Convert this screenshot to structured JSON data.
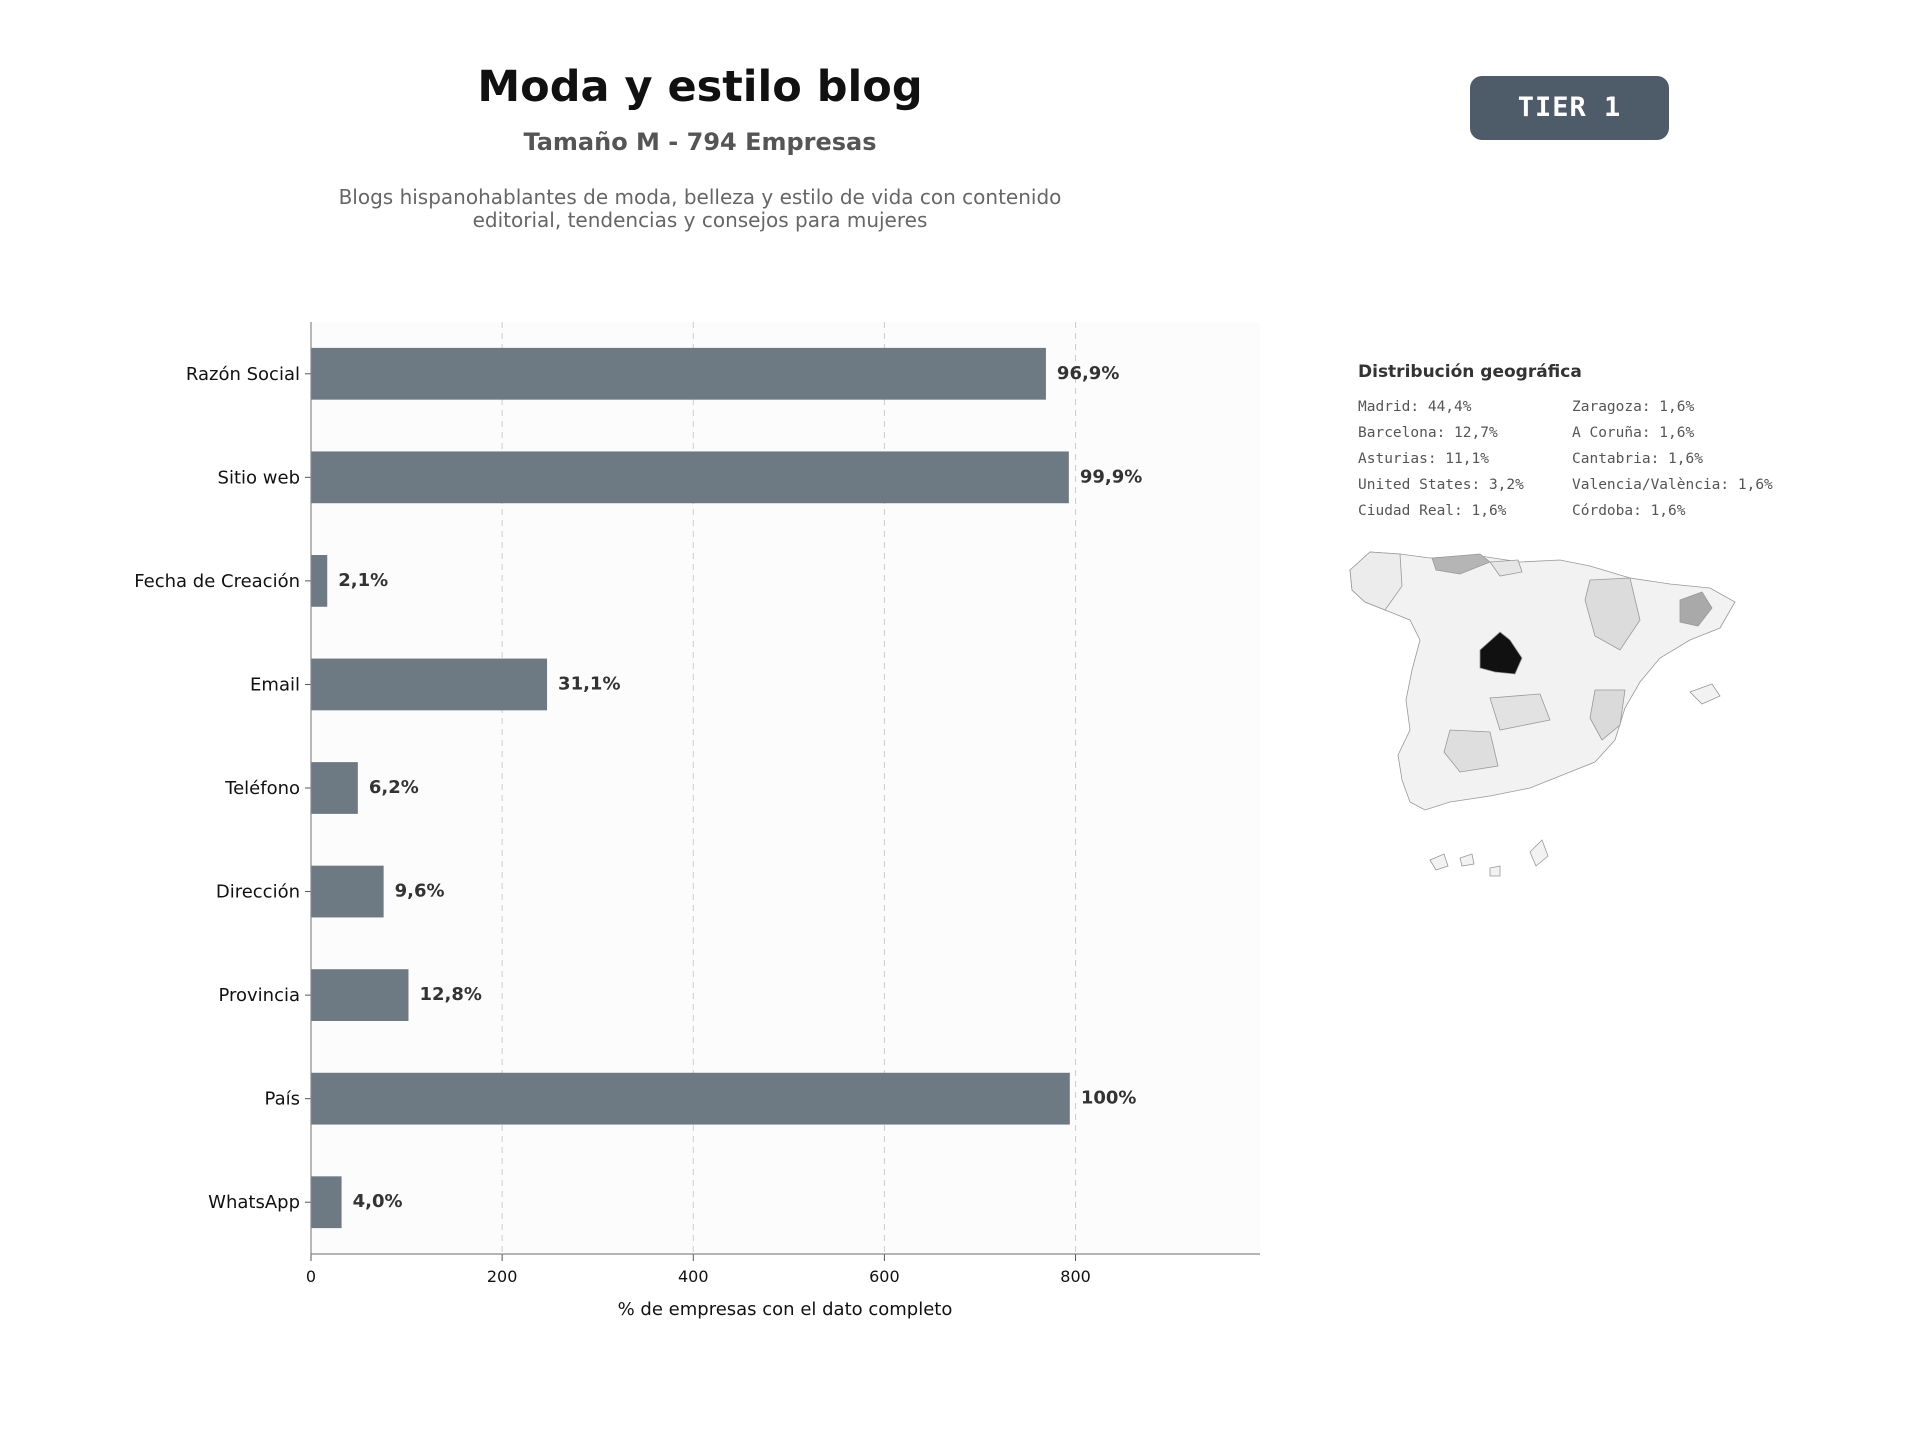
{
  "header": {
    "title": "Moda y estilo blog",
    "subtitle": "Tamaño M - 794 Empresas",
    "description_line1": "Blogs hispanohablantes de moda, belleza y estilo de vida con contenido",
    "description_line2": "editorial, tendencias y consejos para mujeres",
    "tier_badge": "TIER 1"
  },
  "colors": {
    "bar": "#6e7a83",
    "panel_bg": "#fcfcfc",
    "tier_bg": "#4e5b69",
    "map_region": "#f2f2f2",
    "map_highlight": "#111111"
  },
  "chart_data": {
    "type": "bar",
    "orientation": "horizontal",
    "categories": [
      "Razón Social",
      "Sitio web",
      "Fecha de Creación",
      "Email",
      "Teléfono",
      "Dirección",
      "Provincia",
      "País",
      "WhatsApp"
    ],
    "values": [
      769,
      793,
      17,
      247,
      49,
      76,
      102,
      794,
      32
    ],
    "value_labels": [
      "96,9%",
      "99,9%",
      "2,1%",
      "31,1%",
      "6,2%",
      "9,6%",
      "12,8%",
      "100%",
      "4,0%"
    ],
    "xlabel": "% de empresas con el dato completo",
    "ylabel": "",
    "xlim": [
      0,
      993
    ],
    "xticks": [
      0,
      200,
      400,
      600,
      800
    ],
    "xtick_labels": [
      "0",
      "200",
      "400",
      "600",
      "800"
    ],
    "grid": "vertical dashed"
  },
  "geo": {
    "title": "Distribución geográfica",
    "items": [
      "Madrid: 44,4%",
      "Zaragoza: 1,6%",
      "Barcelona: 12,7%",
      "A Coruña: 1,6%",
      "Asturias: 11,1%",
      "Cantabria: 1,6%",
      "United States: 3,2%",
      "Valencia/València: 1,6%",
      "Ciudad Real: 1,6%",
      "Córdoba: 1,6%"
    ]
  }
}
